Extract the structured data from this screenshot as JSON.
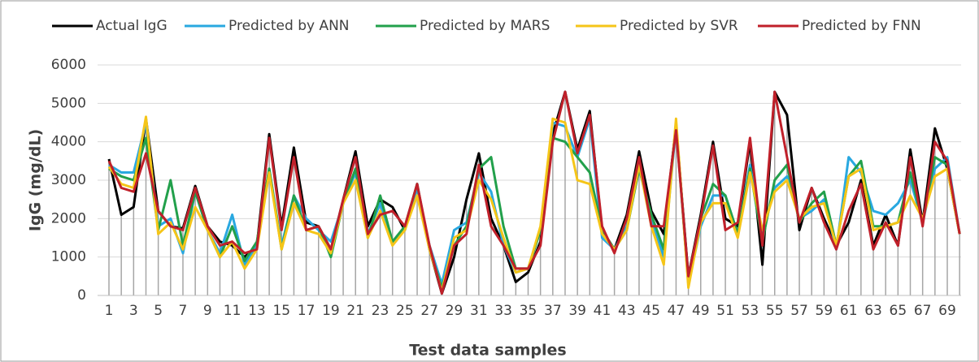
{
  "chart_data": {
    "type": "line",
    "categories": [
      "1",
      null,
      "3",
      null,
      "5",
      null,
      "7",
      null,
      "9",
      null,
      "11",
      null,
      "13",
      null,
      "15",
      null,
      "17",
      null,
      "19",
      null,
      "21",
      null,
      "23",
      null,
      "25",
      null,
      "27",
      null,
      "29",
      null,
      "31",
      null,
      "33",
      null,
      "35",
      null,
      "37",
      null,
      "39",
      null,
      "41",
      null,
      "43",
      null,
      "45",
      null,
      "47",
      null,
      "49",
      null,
      "51",
      null,
      "53",
      null,
      "55",
      null,
      "57",
      null,
      "59",
      null,
      "61",
      null,
      "63",
      null,
      "65",
      null,
      "67",
      null,
      "69",
      null
    ],
    "x_label": "Test data samples",
    "y_label": "IgG (mg/dL)",
    "ylim": [
      0,
      6000
    ],
    "yticks": [
      0,
      1000,
      2000,
      3000,
      4000,
      5000,
      6000
    ],
    "grid": true,
    "legend": "top",
    "drop_lines": true,
    "series": [
      {
        "name": "Actual IgG",
        "color": "#000000",
        "values": [
          3550,
          2100,
          2300,
          4600,
          2200,
          1800,
          1750,
          2850,
          1800,
          1400,
          1300,
          1000,
          1300,
          4200,
          1800,
          3850,
          1900,
          1800,
          1200,
          2500,
          3750,
          1800,
          2500,
          2300,
          1700,
          2900,
          1200,
          50,
          1000,
          2500,
          3700,
          2000,
          1300,
          350,
          600,
          1400,
          4200,
          5300,
          3800,
          4800,
          1700,
          1200,
          2100,
          3750,
          2200,
          1600,
          4400,
          500,
          2100,
          4000,
          2000,
          1800,
          4000,
          800,
          5300,
          4700,
          1700,
          2800,
          2000,
          1300,
          1900,
          3000,
          1300,
          2100,
          1300,
          3800,
          1900,
          4350,
          3300,
          1600
        ]
      },
      {
        "name": "Predicted by ANN",
        "color": "#29a8e0",
        "values": [
          3400,
          3200,
          3200,
          4500,
          1800,
          2000,
          1100,
          2700,
          1700,
          1100,
          2100,
          800,
          1300,
          3300,
          1300,
          2600,
          2000,
          1700,
          1400,
          2400,
          3200,
          1600,
          2400,
          1400,
          1700,
          2800,
          1300,
          300,
          1700,
          1900,
          3200,
          2700,
          1300,
          600,
          700,
          1700,
          4500,
          4400,
          3600,
          4600,
          1500,
          1200,
          1800,
          3300,
          2000,
          1000,
          4400,
          300,
          1800,
          2600,
          2600,
          1600,
          3400,
          1600,
          2800,
          3100,
          2000,
          2200,
          2500,
          1200,
          3600,
          3200,
          2200,
          2100,
          2400,
          3000,
          1900,
          3300,
          3600,
          1600
        ]
      },
      {
        "name": "Predicted by MARS",
        "color": "#22a04b",
        "values": [
          3300,
          3100,
          3000,
          4100,
          1700,
          3000,
          1300,
          2700,
          1700,
          1000,
          1800,
          900,
          1400,
          3300,
          1200,
          2600,
          1700,
          1800,
          1000,
          2400,
          3300,
          1500,
          2600,
          1400,
          1800,
          2900,
          1200,
          200,
          1300,
          1800,
          3300,
          3600,
          1800,
          700,
          700,
          1700,
          4100,
          4000,
          3600,
          3200,
          1700,
          1200,
          1700,
          3300,
          2100,
          1200,
          4500,
          300,
          2000,
          2900,
          2600,
          1600,
          3300,
          1400,
          3000,
          3400,
          1900,
          2400,
          2700,
          1300,
          3100,
          3500,
          1800,
          1800,
          1900,
          3200,
          1900,
          3600,
          3400,
          1600
        ]
      },
      {
        "name": "Predicted by SVR",
        "color": "#f5c518",
        "values": [
          3350,
          2900,
          2800,
          4650,
          1600,
          1900,
          1200,
          2300,
          1700,
          1000,
          1400,
          700,
          1200,
          3200,
          1200,
          2400,
          1700,
          1600,
          1100,
          2400,
          3000,
          1500,
          2200,
          1300,
          1700,
          2600,
          1200,
          100,
          1500,
          1700,
          3000,
          2500,
          1500,
          600,
          700,
          1800,
          4600,
          4500,
          3000,
          2900,
          1600,
          1200,
          1700,
          3400,
          1800,
          800,
          4600,
          200,
          1900,
          2400,
          2400,
          1500,
          3200,
          1700,
          2700,
          3000,
          2000,
          2300,
          2400,
          1300,
          3100,
          3300,
          1700,
          1800,
          1900,
          2600,
          2000,
          3100,
          3300,
          1600
        ]
      },
      {
        "name": "Predicted by FNN",
        "color": "#c0202a",
        "values": [
          3500,
          2800,
          2700,
          3700,
          2200,
          1800,
          1700,
          2800,
          1800,
          1300,
          1400,
          1100,
          1200,
          4100,
          1700,
          3600,
          1700,
          1800,
          1200,
          2500,
          3600,
          1600,
          2100,
          2200,
          1800,
          2900,
          1300,
          50,
          1300,
          1600,
          3400,
          1800,
          1300,
          700,
          700,
          1300,
          4000,
          5300,
          3700,
          4700,
          1800,
          1100,
          2000,
          3600,
          1800,
          1800,
          4300,
          500,
          2000,
          3900,
          1700,
          1900,
          4100,
          1300,
          5300,
          3600,
          1900,
          2800,
          1900,
          1200,
          2200,
          2900,
          1200,
          1900,
          1300,
          3600,
          1800,
          4000,
          3500,
          1600
        ]
      }
    ]
  }
}
